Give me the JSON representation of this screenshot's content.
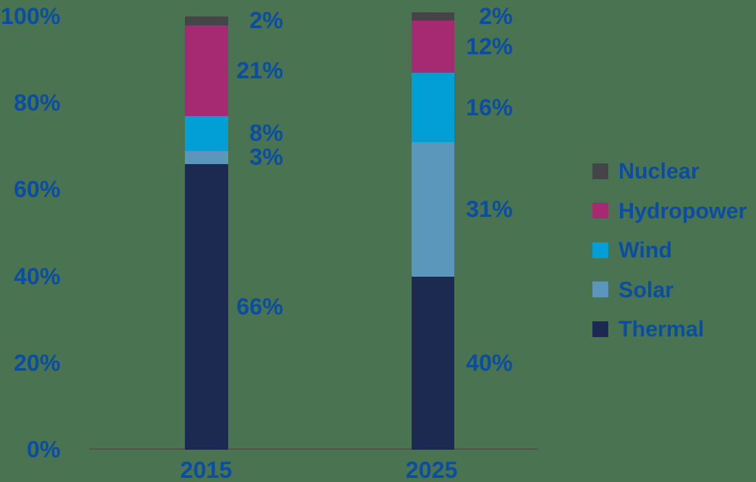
{
  "chart_data": {
    "type": "bar",
    "variant": "stacked-column-percent",
    "title": "",
    "categories": [
      "2015",
      "2025"
    ],
    "series": [
      {
        "name": "Thermal",
        "color": "#1c2a52",
        "values": [
          66,
          40
        ],
        "labels": [
          "66%",
          "40%"
        ]
      },
      {
        "name": "Solar",
        "color": "#5b96bb",
        "values": [
          3,
          31
        ],
        "labels": [
          "3%",
          "31%"
        ]
      },
      {
        "name": "Wind",
        "color": "#019fd5",
        "values": [
          8,
          16
        ],
        "labels": [
          "8%",
          "16%"
        ]
      },
      {
        "name": "Hydropower",
        "color": "#a62a72",
        "values": [
          21,
          12
        ],
        "labels": [
          "21%",
          "12%"
        ]
      },
      {
        "name": "Nuclear",
        "color": "#454449",
        "values": [
          2,
          2
        ],
        "labels": [
          "2%",
          "2%"
        ]
      }
    ],
    "y_ticks": [
      {
        "label": "0%",
        "value": 0
      },
      {
        "label": "20%",
        "value": 20
      },
      {
        "label": "40%",
        "value": 40
      },
      {
        "label": "60%",
        "value": 60
      },
      {
        "label": "80%",
        "value": 80
      },
      {
        "label": "100%",
        "value": 100
      }
    ],
    "ylim": [
      0,
      100
    ],
    "xlabel": "",
    "ylabel": "",
    "grid": false,
    "legend": {
      "position": "right",
      "entries": [
        "Nuclear",
        "Hydropower",
        "Wind",
        "Solar",
        "Thermal"
      ]
    }
  },
  "colors": {
    "background": "#4a7451",
    "label_text": "#0b4da0",
    "axis_line": "#56514c"
  }
}
